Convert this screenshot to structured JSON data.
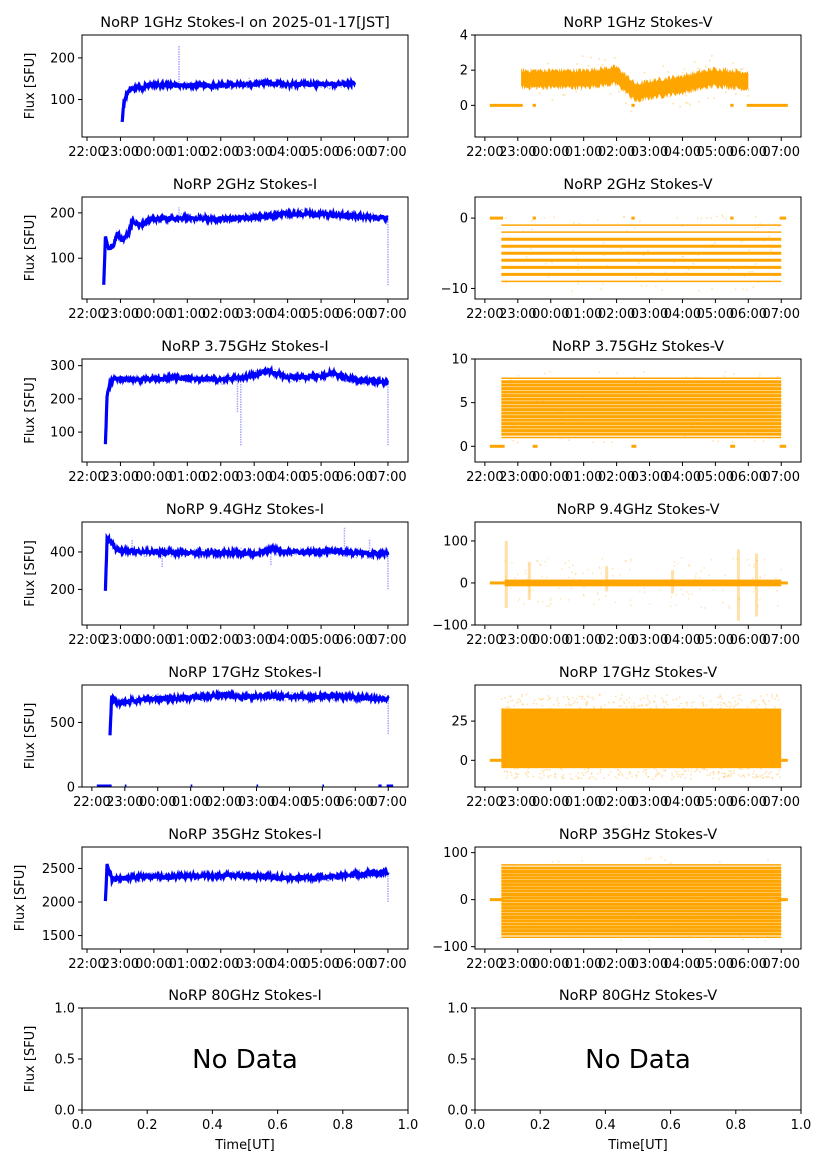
{
  "figure_title_date": "2025-01-17[JST]",
  "colors": {
    "stokes_i": "#0000ff",
    "stokes_v": "#ffa500",
    "axis": "#000000"
  },
  "chart_data": [
    {
      "type": "scatter",
      "title": "NoRP 1GHz Stokes-I on 2025-01-17[JST]",
      "stokes": "I",
      "xlabel": "",
      "ylabel": "Flux [SFU]",
      "ylim": [
        10,
        255
      ],
      "yticks": [
        100,
        200
      ],
      "ytick_labels": [
        "100",
        "200"
      ],
      "xticks": [
        "22:00",
        "23:00",
        "00:00",
        "01:00",
        "02:00",
        "03:00",
        "04:00",
        "05:00",
        "06:00",
        "07:00"
      ],
      "xtick_labels": [
        "22:00",
        "23:00",
        "00:00",
        "01:00",
        "02:00",
        "03:00",
        "04:00",
        "05:00",
        "06:00",
        "07:00"
      ],
      "xlim_hours": [
        -0.15,
        9.6
      ],
      "data_range_hours": [
        1.05,
        8.0
      ],
      "series": {
        "x_hours": [
          1.05,
          1.1,
          1.2,
          1.35,
          1.7,
          2.0,
          2.75,
          3.2,
          3.8,
          4.5,
          5.0,
          5.5,
          6.0,
          7.0,
          8.0
        ],
        "y": [
          45,
          90,
          115,
          127,
          130,
          135,
          135,
          133,
          133,
          137,
          138,
          140,
          137,
          136,
          138
        ]
      },
      "spikes": [
        {
          "x_hours": 2.75,
          "y_max": 230
        },
        {
          "x_hours": 4.85,
          "y_max": 152
        },
        {
          "x_hours": 6.15,
          "y_max": 148
        }
      ],
      "grid": false,
      "no_data": false
    },
    {
      "type": "scatter",
      "title": "NoRP 1GHz Stokes-V",
      "stokes": "V",
      "xlabel": "",
      "ylabel": "",
      "ylim": [
        -1.8,
        4.0
      ],
      "yticks": [
        0,
        2,
        4
      ],
      "ytick_labels": [
        "0",
        "2",
        "4"
      ],
      "xtick_labels": [
        "22:00",
        "23:00",
        "00:00",
        "01:00",
        "02:00",
        "03:00",
        "04:00",
        "05:00",
        "06:00",
        "07:00"
      ],
      "xlim_hours": [
        -0.3,
        9.6
      ],
      "zero_segments_hours": [
        [
          0.15,
          1.15
        ],
        [
          1.45,
          1.55
        ],
        [
          4.45,
          4.55
        ],
        [
          7.45,
          7.55
        ],
        [
          7.95,
          9.2
        ]
      ],
      "band": {
        "x_hours": [
          1.1,
          2.0,
          3.0,
          4.0,
          4.6,
          5.0,
          6.0,
          7.0,
          8.0
        ],
        "center": [
          1.5,
          1.5,
          1.5,
          1.7,
          0.7,
          0.9,
          1.2,
          1.6,
          1.4
        ],
        "halfwidth": 0.5
      },
      "grid": false,
      "no_data": false
    },
    {
      "type": "scatter",
      "title": "NoRP 2GHz Stokes-I",
      "stokes": "I",
      "xlabel": "",
      "ylabel": "Flux [SFU]",
      "ylim": [
        10,
        235
      ],
      "yticks": [
        100,
        200
      ],
      "ytick_labels": [
        "100",
        "200"
      ],
      "xtick_labels": [
        "22:00",
        "23:00",
        "00:00",
        "01:00",
        "02:00",
        "03:00",
        "04:00",
        "05:00",
        "06:00",
        "07:00"
      ],
      "xlim_hours": [
        -0.15,
        9.6
      ],
      "series": {
        "x_hours": [
          0.5,
          0.55,
          0.65,
          0.8,
          0.9,
          1.05,
          1.25,
          1.35,
          1.6,
          2.0,
          3.0,
          4.0,
          5.0,
          6.0,
          7.0,
          8.0,
          9.0
        ],
        "y": [
          40,
          145,
          120,
          130,
          155,
          140,
          155,
          180,
          175,
          187,
          188,
          186,
          190,
          198,
          197,
          193,
          188
        ]
      },
      "spikes": [
        {
          "x_hours": 2.75,
          "y_max": 212
        },
        {
          "x_hours": 9.0,
          "y_min": 40
        }
      ],
      "grid": false,
      "no_data": false
    },
    {
      "type": "scatter",
      "title": "NoRP 2GHz Stokes-V",
      "stokes": "V",
      "xlabel": "",
      "ylabel": "",
      "ylim": [
        -11.5,
        3.0
      ],
      "yticks": [
        -10,
        0
      ],
      "ytick_labels": [
        "−10",
        "0"
      ],
      "xtick_labels": [
        "22:00",
        "23:00",
        "00:00",
        "01:00",
        "02:00",
        "03:00",
        "04:00",
        "05:00",
        "06:00",
        "07:00"
      ],
      "xlim_hours": [
        -0.3,
        9.6
      ],
      "zero_segments_hours": [
        [
          0.15,
          0.55
        ],
        [
          1.45,
          1.55
        ],
        [
          4.45,
          4.55
        ],
        [
          7.45,
          7.55
        ],
        [
          8.95,
          9.15
        ]
      ],
      "levels_range": [
        -9,
        -1
      ],
      "levels_step": 1,
      "data_range_hours": [
        0.5,
        9.0
      ],
      "grid": false,
      "no_data": false
    },
    {
      "type": "scatter",
      "title": "NoRP 3.75GHz Stokes-I",
      "stokes": "I",
      "xlabel": "",
      "ylabel": "Flux [SFU]",
      "ylim": [
        10,
        320
      ],
      "yticks": [
        100,
        200,
        300
      ],
      "ytick_labels": [
        "100",
        "200",
        "300"
      ],
      "xtick_labels": [
        "22:00",
        "23:00",
        "00:00",
        "01:00",
        "02:00",
        "03:00",
        "04:00",
        "05:00",
        "06:00",
        "07:00"
      ],
      "xlim_hours": [
        -0.15,
        9.6
      ],
      "series": {
        "x_hours": [
          0.55,
          0.6,
          0.7,
          0.85,
          1.5,
          2.5,
          3.5,
          4.0,
          4.5,
          4.9,
          5.4,
          6.0,
          7.0,
          7.3,
          8.0,
          9.0
        ],
        "y": [
          60,
          210,
          250,
          262,
          258,
          262,
          262,
          256,
          265,
          268,
          285,
          265,
          268,
          278,
          258,
          250
        ]
      },
      "spikes": [
        {
          "x_hours": 4.5,
          "y_min": 160
        },
        {
          "x_hours": 4.6,
          "y_min": 60
        },
        {
          "x_hours": 9.0,
          "y_min": 60
        }
      ],
      "grid": false,
      "no_data": false
    },
    {
      "type": "scatter",
      "title": "NoRP 3.75GHz Stokes-V",
      "stokes": "V",
      "xlabel": "",
      "ylabel": "",
      "ylim": [
        -1.8,
        10.0
      ],
      "yticks": [
        0,
        5,
        10
      ],
      "ytick_labels": [
        "0",
        "5",
        "10"
      ],
      "xtick_labels": [
        "22:00",
        "23:00",
        "00:00",
        "01:00",
        "02:00",
        "03:00",
        "04:00",
        "05:00",
        "06:00",
        "07:00"
      ],
      "xlim_hours": [
        -0.3,
        9.6
      ],
      "zero_segments_hours": [
        [
          0.15,
          0.6
        ],
        [
          1.45,
          1.6
        ],
        [
          4.45,
          4.6
        ],
        [
          7.45,
          7.6
        ],
        [
          8.95,
          9.15
        ]
      ],
      "levels_range": [
        1,
        8
      ],
      "levels_step": 0.4,
      "data_range_hours": [
        0.5,
        9.0
      ],
      "grid": false,
      "no_data": false
    },
    {
      "type": "scatter",
      "title": "NoRP 9.4GHz Stokes-I",
      "stokes": "I",
      "xlabel": "",
      "ylabel": "Flux [SFU]",
      "ylim": [
        10,
        560
      ],
      "yticks": [
        200,
        400
      ],
      "ytick_labels": [
        "200",
        "400"
      ],
      "xtick_labels": [
        "22:00",
        "23:00",
        "00:00",
        "01:00",
        "02:00",
        "03:00",
        "04:00",
        "05:00",
        "06:00",
        "07:00"
      ],
      "xlim_hours": [
        -0.15,
        9.6
      ],
      "series": {
        "x_hours": [
          0.55,
          0.6,
          0.7,
          0.9,
          1.5,
          2.5,
          3.5,
          4.5,
          5.0,
          5.5,
          6.5,
          7.5,
          8.0,
          8.5,
          9.0
        ],
        "y": [
          200,
          470,
          460,
          410,
          400,
          398,
          395,
          398,
          390,
          410,
          398,
          405,
          395,
          390,
          395
        ]
      },
      "spikes": [
        {
          "x_hours": 1.35,
          "y_max": 470
        },
        {
          "x_hours": 2.25,
          "y_min": 320
        },
        {
          "x_hours": 5.5,
          "y_min": 330
        },
        {
          "x_hours": 7.7,
          "y_max": 530
        },
        {
          "x_hours": 8.45,
          "y_max": 465
        },
        {
          "x_hours": 9.0,
          "y_min": 200
        }
      ],
      "grid": false,
      "no_data": false
    },
    {
      "type": "scatter",
      "title": "NoRP 9.4GHz Stokes-V",
      "stokes": "V",
      "xlabel": "",
      "ylabel": "",
      "ylim": [
        -100,
        145
      ],
      "yticks": [
        -100,
        0,
        100
      ],
      "ytick_labels": [
        "−100",
        "0",
        "100"
      ],
      "xtick_labels": [
        "22:00",
        "23:00",
        "00:00",
        "01:00",
        "02:00",
        "03:00",
        "04:00",
        "05:00",
        "06:00",
        "07:00"
      ],
      "xlim_hours": [
        -0.3,
        9.6
      ],
      "zero_segments_hours": [
        [
          0.15,
          0.6
        ],
        [
          8.9,
          9.2
        ]
      ],
      "band_halfwidth": 8,
      "data_range_hours": [
        0.6,
        9.0
      ],
      "spikes": [
        {
          "x_hours": 0.65,
          "y_range": [
            -60,
            100
          ]
        },
        {
          "x_hours": 1.35,
          "y_range": [
            -40,
            50
          ]
        },
        {
          "x_hours": 3.7,
          "y_range": [
            -20,
            40
          ]
        },
        {
          "x_hours": 5.7,
          "y_range": [
            -25,
            30
          ]
        },
        {
          "x_hours": 7.7,
          "y_range": [
            -90,
            80
          ]
        },
        {
          "x_hours": 8.25,
          "y_range": [
            -80,
            70
          ]
        }
      ],
      "grid": false,
      "no_data": false
    },
    {
      "type": "scatter",
      "title": "NoRP 17GHz Stokes-I",
      "stokes": "I",
      "xlabel": "",
      "ylabel": "Flux [SFU]",
      "ylim": [
        0,
        790
      ],
      "yticks": [
        0,
        500
      ],
      "ytick_labels": [
        "0",
        "500"
      ],
      "xtick_labels": [
        "22:00",
        "23:00",
        "00:00",
        "01:00",
        "02:00",
        "03:00",
        "04:00",
        "05:00",
        "06:00",
        "07:00"
      ],
      "xlim_hours": [
        -0.3,
        9.6
      ],
      "series": {
        "x_hours": [
          0.55,
          0.6,
          0.75,
          1.5,
          3.0,
          4.2,
          4.6,
          5.3,
          6.5,
          7.5,
          8.5,
          9.0
        ],
        "y": [
          400,
          700,
          650,
          680,
          690,
          715,
          695,
          705,
          700,
          700,
          690,
          680
        ]
      },
      "spikes": [
        {
          "x_hours": 9.0,
          "y_min": 410
        }
      ],
      "zero_marks_hours": [
        [
          0.15,
          0.6
        ],
        [
          1.0,
          1.05
        ],
        [
          3.0,
          3.05
        ],
        [
          5.0,
          5.05
        ],
        [
          7.0,
          7.05
        ],
        [
          8.7,
          8.8
        ],
        [
          8.95,
          9.15
        ]
      ],
      "grid": false,
      "no_data": false
    },
    {
      "type": "scatter",
      "title": "NoRP 17GHz Stokes-V",
      "stokes": "V",
      "xlabel": "",
      "ylabel": "",
      "ylim": [
        -17,
        48
      ],
      "yticks": [
        0,
        25
      ],
      "ytick_labels": [
        "0",
        "25"
      ],
      "xtick_labels": [
        "22:00",
        "23:00",
        "00:00",
        "01:00",
        "02:00",
        "03:00",
        "04:00",
        "05:00",
        "06:00",
        "07:00"
      ],
      "xlim_hours": [
        -0.3,
        9.6
      ],
      "zero_segments_hours": [
        [
          0.15,
          0.55
        ],
        [
          9.0,
          9.2
        ]
      ],
      "band_range": [
        -5,
        33
      ],
      "scatter_range": [
        -12,
        42
      ],
      "data_range_hours": [
        0.5,
        9.0
      ],
      "grid": false,
      "no_data": false
    },
    {
      "type": "scatter",
      "title": "NoRP 35GHz Stokes-I",
      "stokes": "I",
      "xlabel": "",
      "ylabel": "Flux [SFU]",
      "ylim": [
        1300,
        2820
      ],
      "yticks": [
        1500,
        2000,
        2500
      ],
      "ytick_labels": [
        "1500",
        "2000",
        "2500"
      ],
      "xtick_labels": [
        "22:00",
        "23:00",
        "00:00",
        "01:00",
        "02:00",
        "03:00",
        "04:00",
        "05:00",
        "06:00",
        "07:00"
      ],
      "xlim_hours": [
        -0.15,
        9.6
      ],
      "series": {
        "x_hours": [
          0.55,
          0.6,
          0.75,
          1.0,
          1.5,
          2.5,
          3.5,
          4.5,
          5.5,
          6.5,
          7.5,
          8.5,
          9.0
        ],
        "y": [
          2000,
          2560,
          2330,
          2360,
          2380,
          2370,
          2390,
          2400,
          2370,
          2360,
          2390,
          2430,
          2440
        ]
      },
      "spikes": [
        {
          "x_hours": 9.0,
          "y_min": 2000
        }
      ],
      "grid": false,
      "no_data": false
    },
    {
      "type": "scatter",
      "title": "NoRP 35GHz Stokes-V",
      "stokes": "V",
      "xlabel": "",
      "ylabel": "",
      "ylim": [
        -105,
        112
      ],
      "yticks": [
        -100,
        0,
        100
      ],
      "ytick_labels": [
        "−100",
        "0",
        "100"
      ],
      "xtick_labels": [
        "22:00",
        "23:00",
        "00:00",
        "01:00",
        "02:00",
        "03:00",
        "04:00",
        "05:00",
        "06:00",
        "07:00"
      ],
      "xlim_hours": [
        -0.3,
        9.6
      ],
      "zero_segments_hours": [
        [
          0.15,
          0.6
        ],
        [
          8.9,
          9.2
        ]
      ],
      "levels_range": [
        -80,
        80
      ],
      "levels_step": 7,
      "data_range_hours": [
        0.5,
        9.0
      ],
      "grid": false,
      "no_data": false
    },
    {
      "type": "scatter",
      "title": "NoRP 80GHz Stokes-I",
      "stokes": "I",
      "xlabel": "Time[UT]",
      "ylabel": "Flux [SFU]",
      "xlim": [
        0,
        1
      ],
      "ylim": [
        0,
        1
      ],
      "xtick_labels": [
        "0.0",
        "0.2",
        "0.4",
        "0.6",
        "0.8",
        "1.0"
      ],
      "ytick_labels": [
        "0.0",
        "0.5",
        "1.0"
      ],
      "annotation": "No Data",
      "grid": false,
      "no_data": true
    },
    {
      "type": "scatter",
      "title": "NoRP 80GHz Stokes-V",
      "stokes": "V",
      "xlabel": "Time[UT]",
      "ylabel": "",
      "xlim": [
        0,
        1
      ],
      "ylim": [
        0,
        1
      ],
      "xtick_labels": [
        "0.0",
        "0.2",
        "0.4",
        "0.6",
        "0.8",
        "1.0"
      ],
      "ytick_labels": [
        "0.0",
        "0.5",
        "1.0"
      ],
      "annotation": "No Data",
      "grid": false,
      "no_data": true
    }
  ]
}
